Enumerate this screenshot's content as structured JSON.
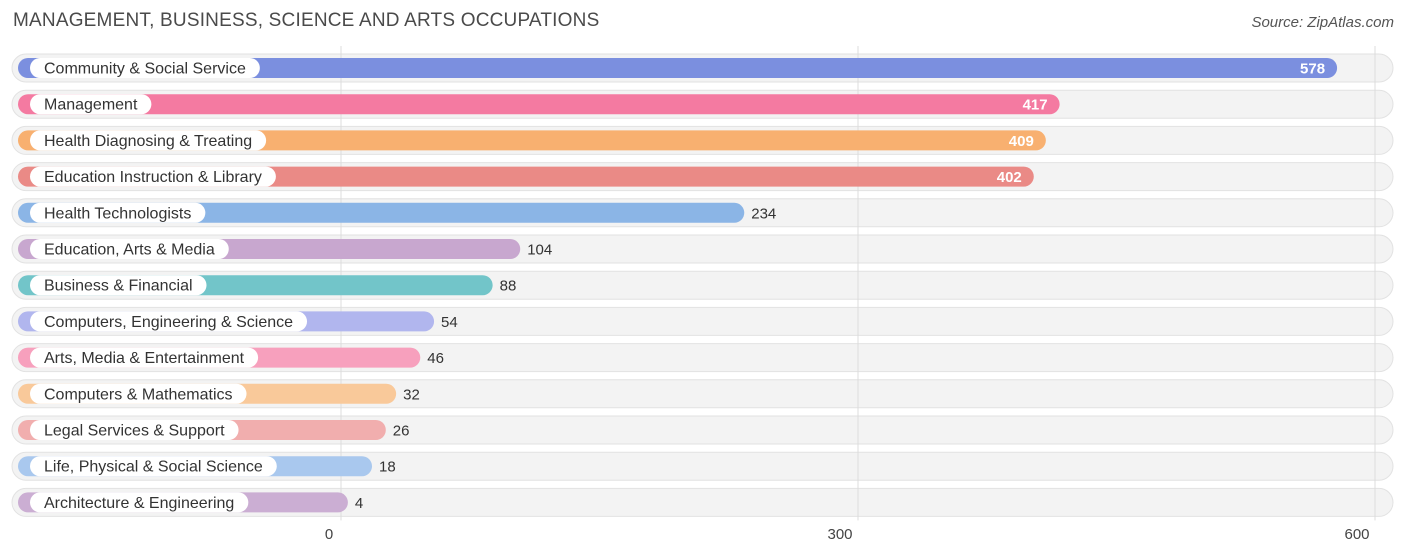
{
  "chart_data": {
    "type": "bar",
    "orientation": "horizontal",
    "title": "MANAGEMENT, BUSINESS, SCIENCE AND ARTS OCCUPATIONS",
    "source": "Source: ZipAtlas.com",
    "categories": [
      "Community & Social Service",
      "Management",
      "Health Diagnosing & Treating",
      "Education Instruction & Library",
      "Health Technologists",
      "Education, Arts & Media",
      "Business & Financial",
      "Computers, Engineering & Science",
      "Arts, Media & Entertainment",
      "Computers & Mathematics",
      "Legal Services & Support",
      "Life, Physical & Social Science",
      "Architecture & Engineering"
    ],
    "values": [
      578,
      417,
      409,
      402,
      234,
      104,
      88,
      54,
      46,
      32,
      26,
      18,
      4
    ],
    "colors": [
      "#7b8fdf",
      "#f47aa1",
      "#f8b070",
      "#ea8a86",
      "#8bb5e6",
      "#c8a7cf",
      "#72c5c9",
      "#b1b6ee",
      "#f7a0bd",
      "#f9c99a",
      "#f1aeae",
      "#a9c8ee",
      "#cbaed3"
    ],
    "xticks": [
      0,
      300,
      600
    ],
    "xlim": [
      0,
      600
    ],
    "grid": true
  }
}
